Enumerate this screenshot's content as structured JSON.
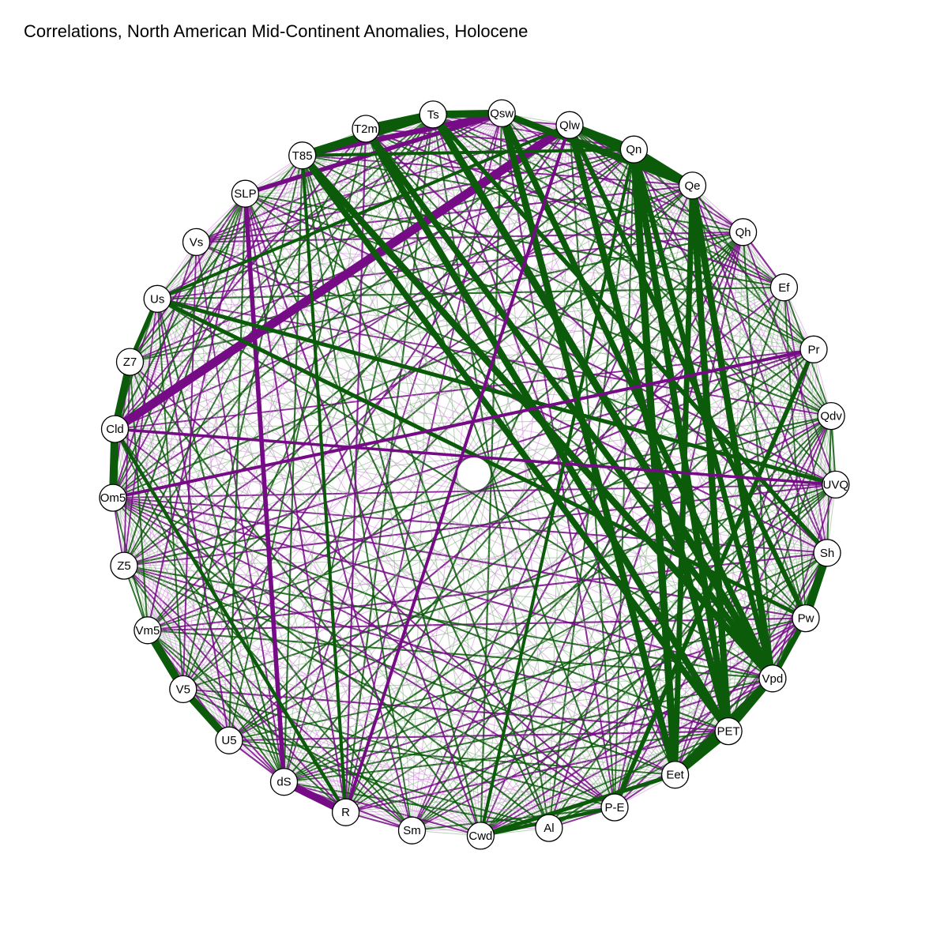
{
  "chart_data": {
    "type": "network",
    "title": "Correlations, North American Mid-Continent Anomalies, Holocene",
    "layout": "circle",
    "colors": {
      "positive": "#0b5b0b",
      "negative": "#760b86",
      "positive_light": "#7fae7f",
      "negative_light": "#cf86d8",
      "node_fill": "#ffffff",
      "node_stroke": "#000000"
    },
    "nodes": [
      "Ts",
      "Qsw",
      "Qlw",
      "Qn",
      "Qe",
      "Qh",
      "Ef",
      "Pr",
      "Qdv",
      "UVQ",
      "Sh",
      "Pw",
      "Vpd",
      "PET",
      "Eet",
      "P-E",
      "Al",
      "Cwd",
      "Sm",
      "R",
      "dS",
      "U5",
      "V5",
      "Vm5",
      "Z5",
      "Om5",
      "Cld",
      "Z7",
      "Us",
      "Vs",
      "SLP",
      "T85",
      "T2m"
    ],
    "strong_edges": [
      {
        "from": "Qlw",
        "to": "Cld",
        "r": -0.95
      },
      {
        "from": "Qsw",
        "to": "T85",
        "r": -0.7
      },
      {
        "from": "Qsw",
        "to": "SLP",
        "r": -0.6
      },
      {
        "from": "SLP",
        "to": "dS",
        "r": -0.6
      },
      {
        "from": "dS",
        "to": "R",
        "r": -0.85
      },
      {
        "from": "Cld",
        "to": "Om5",
        "r": 0.9
      },
      {
        "from": "Z7",
        "to": "Cld",
        "r": 0.85
      },
      {
        "from": "Z7",
        "to": "Us",
        "r": 0.6
      },
      {
        "from": "V5",
        "to": "Vm5",
        "r": 0.9
      },
      {
        "from": "V5",
        "to": "U5",
        "r": 0.85
      },
      {
        "from": "T85",
        "to": "Ts",
        "r": 0.9
      },
      {
        "from": "T2m",
        "to": "Ts",
        "r": 0.9
      },
      {
        "from": "Ts",
        "to": "Qsw",
        "r": 0.85
      },
      {
        "from": "Qlw",
        "to": "Qn",
        "r": 0.85
      },
      {
        "from": "Qn",
        "to": "Qe",
        "r": 0.8
      },
      {
        "from": "Qsw",
        "to": "Qe",
        "r": 0.8
      },
      {
        "from": "Qlw",
        "to": "Qe",
        "r": 0.7
      },
      {
        "from": "Sh",
        "to": "Pw",
        "r": 0.9
      },
      {
        "from": "Pw",
        "to": "Vpd",
        "r": 0.7
      },
      {
        "from": "Vpd",
        "to": "Eet",
        "r": 0.9
      },
      {
        "from": "PET",
        "to": "Eet",
        "r": 0.9
      },
      {
        "from": "Vpd",
        "to": "PET",
        "r": 0.7
      },
      {
        "from": "T2m",
        "to": "Vpd",
        "r": 0.75
      },
      {
        "from": "T2m",
        "to": "PET",
        "r": 0.8
      },
      {
        "from": "T85",
        "to": "Vpd",
        "r": 0.8
      },
      {
        "from": "T85",
        "to": "PET",
        "r": 0.75
      },
      {
        "from": "Ts",
        "to": "Vpd",
        "r": 0.85
      },
      {
        "from": "Ts",
        "to": "Sh",
        "r": 0.6
      },
      {
        "from": "Qsw",
        "to": "Eet",
        "r": 0.8
      },
      {
        "from": "Qsw",
        "to": "Vpd",
        "r": 0.75
      },
      {
        "from": "Qlw",
        "to": "PET",
        "r": 0.8
      },
      {
        "from": "Qlw",
        "to": "Pw",
        "r": 0.65
      },
      {
        "from": "Qn",
        "to": "PET",
        "r": 0.8
      },
      {
        "from": "Qn",
        "to": "Eet",
        "r": 0.85
      },
      {
        "from": "Qn",
        "to": "Vpd",
        "r": 0.7
      },
      {
        "from": "Qe",
        "to": "Vpd",
        "r": 0.8
      },
      {
        "from": "Qe",
        "to": "PET",
        "r": 0.8
      },
      {
        "from": "Qe",
        "to": "Eet",
        "r": 0.7
      },
      {
        "from": "Us",
        "to": "Pw",
        "r": 0.55
      },
      {
        "from": "Us",
        "to": "UVQ",
        "r": 0.55
      },
      {
        "from": "Us",
        "to": "Qlw",
        "r": 0.45
      },
      {
        "from": "Pr",
        "to": "P-E",
        "r": 0.6
      },
      {
        "from": "Pr",
        "to": "Om5",
        "r": -0.45
      },
      {
        "from": "Cld",
        "to": "UVQ",
        "r": -0.4
      },
      {
        "from": "Cwd",
        "to": "Eet",
        "r": 0.55
      },
      {
        "from": "Cwd",
        "to": "P-E",
        "r": 0.5
      },
      {
        "from": "Cwd",
        "to": "Qn",
        "r": 0.45
      },
      {
        "from": "R",
        "to": "Cld",
        "r": 0.5
      },
      {
        "from": "R",
        "to": "T85",
        "r": 0.45
      },
      {
        "from": "R",
        "to": "Qlw",
        "r": -0.45
      },
      {
        "from": "T85",
        "to": "Qn",
        "r": 0.45
      }
    ]
  }
}
